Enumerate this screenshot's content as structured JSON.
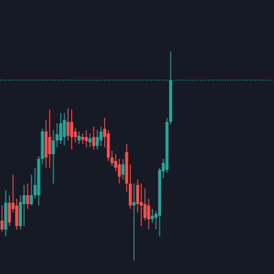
{
  "chart_data": {
    "type": "candlestick",
    "up_color": "#26a69a",
    "down_color": "#ef5350",
    "ylim": [
      0,
      400
    ],
    "open": [
      78,
      65,
      104,
      104,
      100,
      70,
      102,
      115,
      102,
      115,
      115,
      168,
      208,
      200,
      175,
      195,
      195,
      200,
      222,
      222,
      208,
      195,
      200,
      200,
      192,
      200,
      187,
      195,
      212,
      205,
      170,
      165,
      160,
      145,
      178,
      132,
      100,
      130,
      105,
      102,
      100,
      80,
      82,
      85,
      150,
      152,
      222
    ],
    "high": [
      100,
      122,
      115,
      145,
      110,
      115,
      130,
      132,
      145,
      155,
      172,
      212,
      225,
      240,
      210,
      220,
      235,
      235,
      242,
      240,
      213,
      208,
      205,
      210,
      205,
      215,
      210,
      215,
      228,
      210,
      180,
      175,
      168,
      168,
      190,
      160,
      132,
      138,
      132,
      125,
      110,
      95,
      92,
      155,
      168,
      228,
      325
    ],
    "low": [
      62,
      55,
      70,
      90,
      65,
      65,
      70,
      95,
      100,
      110,
      100,
      160,
      155,
      155,
      132,
      185,
      190,
      188,
      195,
      182,
      192,
      190,
      190,
      185,
      185,
      182,
      182,
      187,
      185,
      165,
      158,
      150,
      132,
      138,
      120,
      95,
      20,
      90,
      70,
      78,
      65,
      75,
      65,
      55,
      140,
      148,
      218
    ],
    "close": [
      65,
      104,
      75,
      95,
      70,
      105,
      115,
      102,
      115,
      130,
      168,
      208,
      170,
      175,
      195,
      204,
      220,
      225,
      202,
      200,
      200,
      202,
      196,
      194,
      198,
      187,
      200,
      208,
      200,
      170,
      162,
      155,
      142,
      160,
      132,
      100,
      105,
      102,
      100,
      82,
      80,
      85,
      88,
      152,
      162,
      222,
      283
    ],
    "last_price_line": true
  }
}
